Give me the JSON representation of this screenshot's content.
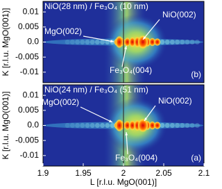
{
  "chart_data": [
    {
      "type": "heatmap",
      "title": "NiO(28 nm) / Fe₃O₄ (10 nm)",
      "panel_label": "(b)",
      "annotations": [
        "MgO(002)",
        "NiO(002)",
        "Fe₃O₄(004)"
      ],
      "ylabel": "K [r.l.u. MgO(001)]",
      "xlim": [
        1.9,
        2.1
      ],
      "ylim": [
        -0.0135,
        0.0135
      ],
      "yticks": [
        0.01,
        0.005,
        {
          "value": 0,
          "label": "0.0"
        },
        -0.005,
        -0.01
      ]
    },
    {
      "type": "heatmap",
      "title": "NiO(24 nm) / Fe₃O₄ (51 nm)",
      "panel_label": "(a)",
      "annotations": [
        "MgO(002)",
        "NiO(002)",
        "Fe₃O₄(004)"
      ],
      "ylabel": "K [r.l.u. MgO(001)]",
      "xlabel": "L [r.l.u. MgO(001)]",
      "xlim": [
        1.9,
        2.1
      ],
      "ylim": [
        -0.0135,
        0.0135
      ],
      "xticks": [
        1.9,
        1.95,
        2,
        2.05,
        2.1
      ],
      "yticks": [
        0.01,
        0.005,
        {
          "value": 0,
          "label": "0.0"
        },
        -0.005,
        -0.01
      ]
    }
  ]
}
